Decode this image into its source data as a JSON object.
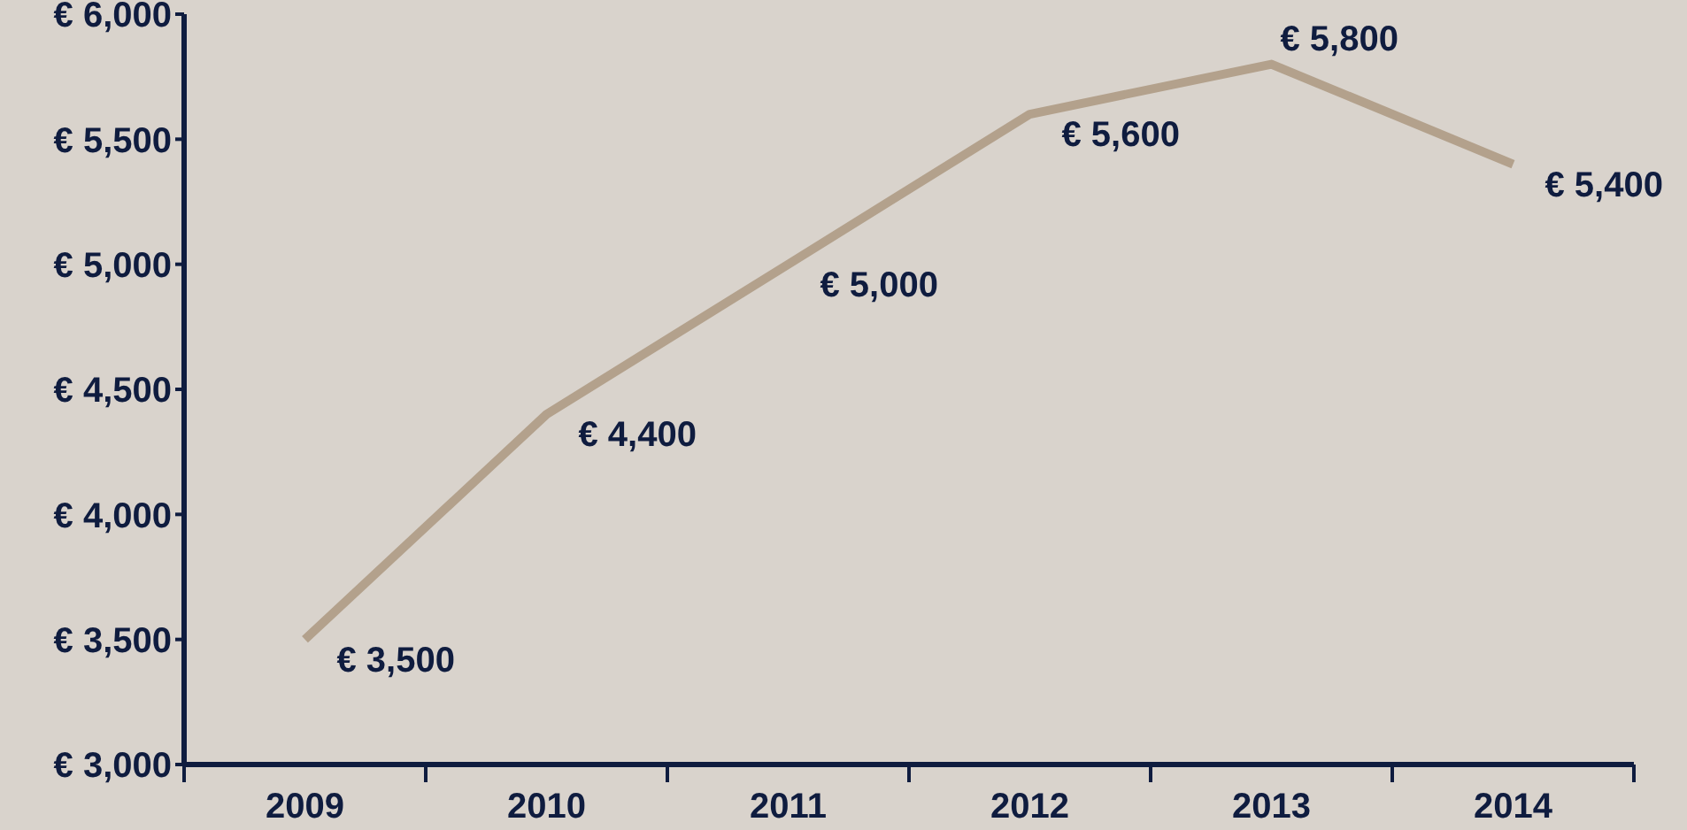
{
  "chart_data": {
    "type": "line",
    "categories": [
      "2009",
      "2010",
      "2011",
      "2012",
      "2013",
      "2014"
    ],
    "series": [
      {
        "color": "#b3a18c",
        "values": [
          3500,
          4400,
          5000,
          5600,
          5800,
          5400
        ],
        "value_labels": [
          "€ 3,500",
          "€ 4,400",
          "€ 5,000",
          "€ 5,600",
          "€ 5,800",
          "€ 5,400"
        ]
      }
    ],
    "ylim": [
      3000,
      6000
    ],
    "yticks": [
      {
        "value": 3000,
        "label": "€ 3,000"
      },
      {
        "value": 3500,
        "label": "€ 3,500"
      },
      {
        "value": 4000,
        "label": "€ 4,000"
      },
      {
        "value": 4500,
        "label": "€ 4,500"
      },
      {
        "value": 5000,
        "label": "€ 5,000"
      },
      {
        "value": 5500,
        "label": "€ 5,500"
      },
      {
        "value": 6000,
        "label": "€ 6,000"
      }
    ],
    "grid": false,
    "legend": false,
    "marker": "none",
    "line_style": "solid"
  }
}
